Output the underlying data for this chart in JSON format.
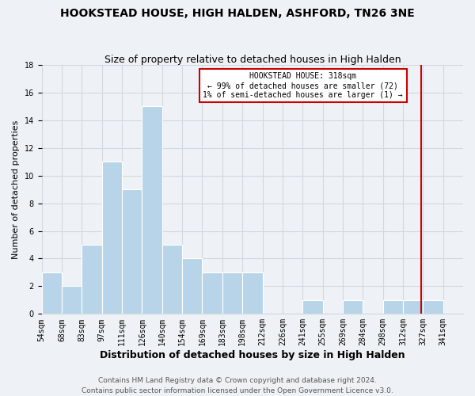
{
  "title": "HOOKSTEAD HOUSE, HIGH HALDEN, ASHFORD, TN26 3NE",
  "subtitle": "Size of property relative to detached houses in High Halden",
  "xlabel": "Distribution of detached houses by size in High Halden",
  "ylabel": "Number of detached properties",
  "bin_labels": [
    "54sqm",
    "68sqm",
    "83sqm",
    "97sqm",
    "111sqm",
    "126sqm",
    "140sqm",
    "154sqm",
    "169sqm",
    "183sqm",
    "198sqm",
    "212sqm",
    "226sqm",
    "241sqm",
    "255sqm",
    "269sqm",
    "284sqm",
    "298sqm",
    "312sqm",
    "327sqm",
    "341sqm"
  ],
  "bin_values": [
    3,
    2,
    5,
    11,
    9,
    15,
    5,
    4,
    3,
    3,
    3,
    0,
    0,
    1,
    0,
    1,
    0,
    1,
    1,
    1,
    0
  ],
  "bar_color": "#b8d4e8",
  "grid_color": "#d0d8e0",
  "vline_color": "#cc0000",
  "annotation_text": "HOOKSTEAD HOUSE: 318sqm\n← 99% of detached houses are smaller (72)\n1% of semi-detached houses are larger (1) →",
  "annotation_box_facecolor": "#ffffff",
  "annotation_box_edgecolor": "#cc0000",
  "ylim": [
    0,
    18
  ],
  "yticks": [
    0,
    2,
    4,
    6,
    8,
    10,
    12,
    14,
    16,
    18
  ],
  "footer_text": "Contains HM Land Registry data © Crown copyright and database right 2024.\nContains public sector information licensed under the Open Government Licence v3.0.",
  "background_color": "#eef2f6",
  "title_fontsize": 10,
  "subtitle_fontsize": 9,
  "xlabel_fontsize": 9,
  "ylabel_fontsize": 8,
  "tick_fontsize": 7,
  "annotation_fontsize": 7,
  "footer_fontsize": 6.5
}
